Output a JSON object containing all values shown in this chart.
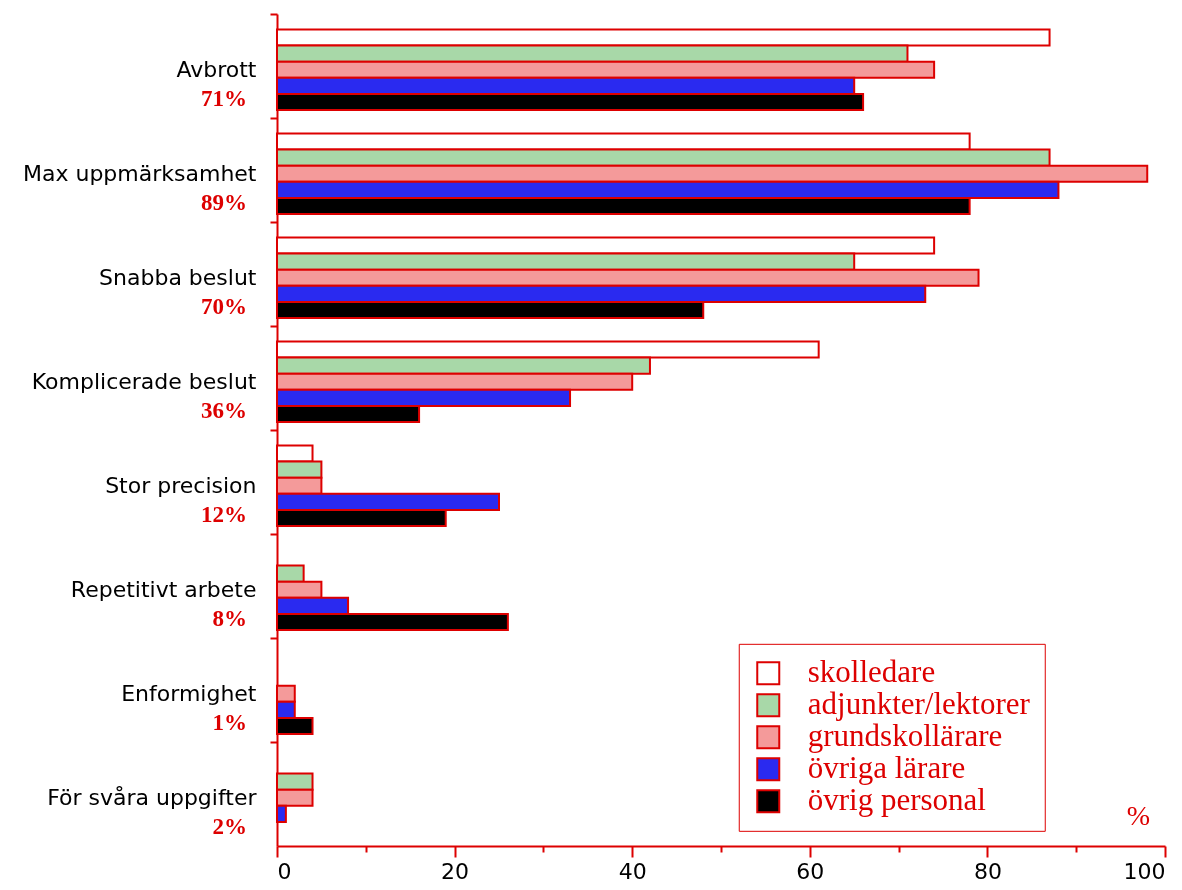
{
  "chart_data": {
    "type": "bar",
    "orientation": "horizontal",
    "xlabel": "%",
    "categories": [
      "Avbrott",
      "Max uppmärksamhet",
      "Snabba beslut",
      "Komplicerade beslut",
      "Stor precision",
      "Repetitivt arbete",
      "Enformighet",
      "För svåra uppgifter"
    ],
    "series": [
      {
        "name": "skolledare",
        "color": "#ffffff",
        "values": [
          87,
          78,
          74,
          61,
          4,
          null,
          null,
          null
        ]
      },
      {
        "name": "adjunkter/lektorer",
        "color": "#a8d8a8",
        "values": [
          71,
          87,
          65,
          42,
          5,
          3,
          null,
          4
        ]
      },
      {
        "name": "grundskollärare",
        "color": "#f49a9a",
        "values": [
          74,
          98,
          79,
          40,
          5,
          5,
          2,
          4
        ]
      },
      {
        "name": "övriga lärare",
        "color": "#2a2af0",
        "values": [
          65,
          88,
          73,
          33,
          25,
          8,
          2,
          1
        ]
      },
      {
        "name": "övrig personal",
        "color": "#000000",
        "values": [
          66,
          78,
          48,
          16,
          19,
          26,
          4,
          null
        ]
      }
    ],
    "xlim": [
      0,
      100
    ],
    "xticks": [
      0,
      {
        "value": 10,
        "label": null
      },
      20,
      {
        "value": 30,
        "label": null
      },
      40,
      {
        "value": 50,
        "label": null
      },
      60,
      {
        "value": 70,
        "label": null
      },
      80,
      {
        "value": 90,
        "label": null
      },
      100
    ],
    "annotations": [
      "71%",
      "89%",
      "70%",
      "36%",
      "12%",
      "8%",
      "1%",
      "2%"
    ],
    "legend": "bottom right"
  }
}
